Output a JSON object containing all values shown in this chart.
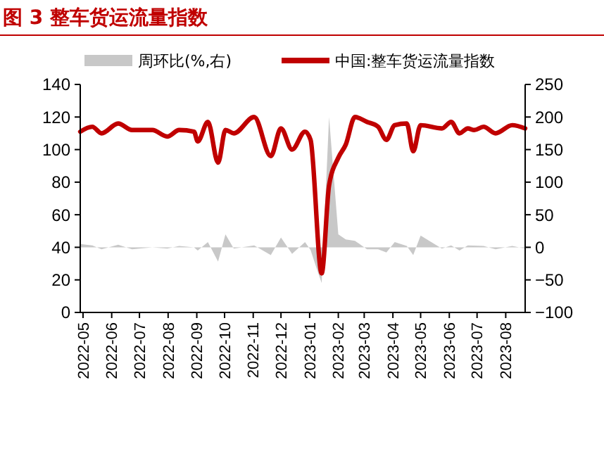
{
  "chart_data": {
    "type": "line",
    "title": "图 3 整车货运流量指数",
    "legend": "top",
    "grid": false,
    "xlim": [
      "2022-04-28",
      "2023-08-22"
    ],
    "xticks": [
      "2022-05",
      "2022-06",
      "2022-07",
      "2022-08",
      "2022-09",
      "2022-10",
      "2022-11",
      "2022-12",
      "2023-01",
      "2023-02",
      "2023-03",
      "2023-04",
      "2023-05",
      "2023-06",
      "2023-07",
      "2023-08"
    ],
    "ylim": [
      0,
      140
    ],
    "yticks": [
      0,
      20,
      40,
      60,
      80,
      100,
      120,
      140
    ],
    "y2lim": [
      -100,
      250
    ],
    "y2ticks": [
      -100,
      -50,
      0,
      50,
      100,
      150,
      200,
      250
    ],
    "series": [
      {
        "name": "周环比(%,右)",
        "type": "area",
        "axis": "y2",
        "color": "#c8c8c8",
        "x": [
          "2022-04-28",
          "2022-05-11",
          "2022-05-21",
          "2022-06-08",
          "2022-06-23",
          "2022-07-15",
          "2022-07-31",
          "2022-08-13",
          "2022-08-29",
          "2022-09-02",
          "2022-09-13",
          "2022-09-24",
          "2022-10-02",
          "2022-10-11",
          "2022-11-02",
          "2022-11-20",
          "2022-12-01",
          "2022-12-13",
          "2022-12-27",
          "2023-01-02",
          "2023-01-08",
          "2023-01-14",
          "2023-01-22",
          "2023-02-01",
          "2023-02-09",
          "2023-02-19",
          "2023-03-04",
          "2023-03-16",
          "2023-03-25",
          "2023-04-03",
          "2023-04-16",
          "2023-04-23",
          "2023-05-01",
          "2023-05-24",
          "2023-06-03",
          "2023-06-12",
          "2023-06-21",
          "2023-07-08",
          "2023-07-21",
          "2023-08-08",
          "2023-08-22"
        ],
        "values": [
          5,
          3,
          -3,
          4,
          -3,
          0,
          -2,
          2,
          0,
          -5,
          8,
          -22,
          20,
          -2,
          3,
          -12,
          15,
          -10,
          8,
          -4,
          -30,
          -55,
          200,
          20,
          12,
          10,
          -3,
          -3,
          -8,
          8,
          2,
          -12,
          18,
          -2,
          3,
          -5,
          3,
          2,
          -3,
          2,
          -2
        ]
      },
      {
        "name": "中国:整车货运流量指数",
        "color": "#c00000",
        "x": [
          "2022-04-28",
          "2022-05-11",
          "2022-05-21",
          "2022-06-08",
          "2022-06-23",
          "2022-07-15",
          "2022-07-31",
          "2022-08-13",
          "2022-08-29",
          "2022-09-02",
          "2022-09-13",
          "2022-09-24",
          "2022-10-02",
          "2022-10-11",
          "2022-11-02",
          "2022-11-20",
          "2022-12-01",
          "2022-12-13",
          "2022-12-27",
          "2023-01-02",
          "2023-01-14",
          "2023-01-22",
          "2023-02-01",
          "2023-02-09",
          "2023-02-19",
          "2023-03-04",
          "2023-03-16",
          "2023-03-25",
          "2023-04-03",
          "2023-04-16",
          "2023-04-23",
          "2023-05-01",
          "2023-05-24",
          "2023-06-03",
          "2023-06-12",
          "2023-06-21",
          "2023-06-28",
          "2023-07-08",
          "2023-07-21",
          "2023-08-08",
          "2023-08-22"
        ],
        "values": [
          111,
          114,
          110,
          116,
          112,
          112,
          108,
          112,
          111,
          105,
          117,
          92,
          112,
          110,
          120,
          96,
          113,
          100,
          111,
          106,
          24,
          78,
          95,
          103,
          120,
          117,
          114,
          106,
          115,
          116,
          99,
          115,
          113,
          117,
          110,
          113,
          112,
          114,
          110,
          115,
          113
        ]
      }
    ]
  }
}
